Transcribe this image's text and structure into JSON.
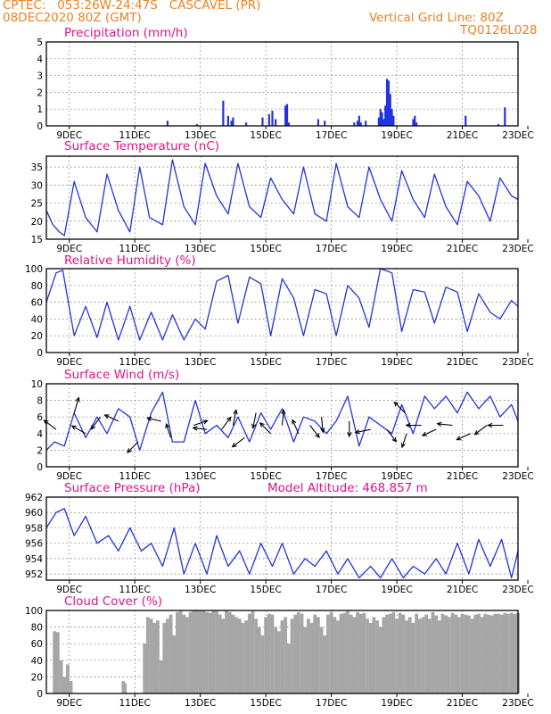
{
  "header": {
    "line1_left": "CPTEC:   053:26W-24:47S   CASCAVEL (PR)",
    "line2_left": "08DEC2020 80Z (GMT)",
    "line2_right": "Vertical Grid Line: 80Z",
    "line3_right": "TQ0126L028"
  },
  "model_altitude": "Model Altitude: 468.857 m",
  "colors": {
    "header": "#f08020",
    "title": "#e0138a",
    "line": "#2233dd",
    "bar": "#2233dd",
    "cloud": "#a6a6a6"
  },
  "chart_data": [
    {
      "type": "bar",
      "title": "Precipitation (mm/h)",
      "ylim": [
        0,
        5
      ],
      "yticks": [
        "0",
        "1",
        "2",
        "3",
        "4",
        "5"
      ],
      "xtick_labels": [
        "9DEC",
        "11DEC",
        "13DEC",
        "15DEC",
        "17DEC",
        "19DEC",
        "21DEC",
        "23DEC"
      ],
      "x": [
        3.7,
        4.6,
        5.4,
        5.55,
        5.65,
        5.7,
        6.1,
        6.6,
        6.8,
        6.9,
        7.0,
        7.3,
        7.35,
        7.4,
        8.3,
        8.5,
        9.4,
        9.5,
        9.55,
        9.6,
        9.75,
        10.15,
        10.2,
        10.25,
        10.3,
        10.35,
        10.4,
        10.45,
        10.5,
        10.55,
        10.6,
        11.2,
        11.25,
        11.3,
        12.8,
        13.8,
        14.0
      ],
      "values": [
        0.3,
        0.1,
        1.5,
        0.6,
        0.3,
        0.5,
        0.2,
        0.5,
        0.7,
        0.9,
        0.4,
        1.2,
        1.3,
        0.2,
        0.4,
        0.3,
        0.2,
        0.3,
        0.6,
        0.2,
        0.3,
        0.5,
        1.0,
        0.8,
        0.4,
        1.2,
        2.8,
        2.7,
        1.9,
        1.0,
        0.6,
        0.4,
        0.6,
        0.2,
        0.6,
        0.1,
        1.1
      ]
    },
    {
      "type": "line",
      "title": "Surface Temperature (nC)",
      "ylim": [
        15,
        38
      ],
      "yticks": [
        "15",
        "20",
        "25",
        "30",
        "35"
      ],
      "xtick_labels": [
        "9DEC",
        "11DEC",
        "13DEC",
        "15DEC",
        "17DEC",
        "19DEC",
        "21DEC",
        "23DEC"
      ],
      "x": [
        0,
        0.2,
        0.4,
        0.55,
        0.85,
        1.2,
        1.55,
        1.85,
        2.2,
        2.55,
        2.85,
        3.15,
        3.55,
        3.85,
        4.2,
        4.55,
        4.85,
        5.2,
        5.55,
        5.85,
        6.2,
        6.55,
        6.85,
        7.2,
        7.55,
        7.85,
        8.2,
        8.55,
        8.85,
        9.2,
        9.55,
        9.85,
        10.2,
        10.55,
        10.85,
        11.2,
        11.55,
        11.85,
        12.2,
        12.55,
        12.85,
        13.2,
        13.55,
        13.85,
        14.2,
        14.4
      ],
      "values": [
        23,
        19,
        17,
        16,
        31,
        21,
        17,
        33,
        23,
        17,
        35,
        21,
        19,
        37,
        24,
        19,
        36,
        27,
        22,
        36,
        24,
        21,
        32,
        26,
        22,
        35,
        22,
        20,
        36,
        24,
        21,
        35,
        26,
        20,
        34,
        26,
        21,
        33,
        24,
        19,
        31,
        27,
        20,
        32,
        27,
        26
      ]
    },
    {
      "type": "line",
      "title": "Relative Humidity (%)",
      "ylim": [
        0,
        100
      ],
      "yticks": [
        "0",
        "20",
        "40",
        "60",
        "80",
        "100"
      ],
      "xtick_labels": [
        "9DEC",
        "11DEC",
        "13DEC",
        "15DEC",
        "17DEC",
        "19DEC",
        "21DEC",
        "23DEC"
      ],
      "x": [
        0,
        0.3,
        0.5,
        0.85,
        1.2,
        1.55,
        1.85,
        2.2,
        2.55,
        2.85,
        3.2,
        3.55,
        3.85,
        4.2,
        4.55,
        4.85,
        5.2,
        5.55,
        5.85,
        6.2,
        6.55,
        6.85,
        7.2,
        7.55,
        7.85,
        8.2,
        8.55,
        8.85,
        9.2,
        9.55,
        9.85,
        10.2,
        10.55,
        10.85,
        11.2,
        11.55,
        11.85,
        12.2,
        12.55,
        12.85,
        13.2,
        13.55,
        13.85,
        14.2,
        14.4
      ],
      "values": [
        60,
        95,
        98,
        20,
        55,
        18,
        60,
        15,
        55,
        15,
        48,
        15,
        45,
        15,
        40,
        28,
        85,
        92,
        35,
        90,
        82,
        20,
        88,
        65,
        20,
        75,
        70,
        20,
        80,
        65,
        30,
        100,
        95,
        25,
        75,
        72,
        35,
        78,
        72,
        25,
        70,
        48,
        40,
        62,
        55
      ]
    },
    {
      "type": "line",
      "title": "Surface Wind (m/s)",
      "ylim": [
        0,
        10
      ],
      "yticks": [
        "0",
        "2",
        "4",
        "6",
        "8",
        "10"
      ],
      "xtick_labels": [
        "9DEC",
        "11DEC",
        "13DEC",
        "15DEC",
        "17DEC",
        "19DEC",
        "21DEC",
        "23DEC"
      ],
      "x": [
        0,
        0.25,
        0.55,
        0.85,
        1.2,
        1.55,
        1.85,
        2.2,
        2.55,
        2.85,
        3.2,
        3.55,
        3.85,
        4.2,
        4.55,
        4.85,
        5.2,
        5.55,
        5.85,
        6.2,
        6.55,
        6.85,
        7.2,
        7.55,
        7.85,
        8.2,
        8.55,
        8.85,
        9.2,
        9.55,
        9.85,
        10.2,
        10.55,
        10.85,
        11.2,
        11.55,
        11.85,
        12.2,
        12.55,
        12.85,
        13.2,
        13.55,
        13.85,
        14.2,
        14.4
      ],
      "values": [
        2,
        3,
        2.5,
        6.5,
        3.5,
        6,
        4,
        7,
        6,
        2,
        6.5,
        9,
        3,
        3,
        8,
        4,
        5,
        3.5,
        6,
        3,
        6.5,
        4.5,
        7,
        3,
        6,
        5.5,
        4,
        5.5,
        8.5,
        2.5,
        6,
        5,
        4,
        7.5,
        4,
        8.5,
        7,
        8.5,
        6.5,
        9,
        7,
        8.5,
        6,
        7.5,
        5.5
      ],
      "wind_arrows": [
        {
          "x": 0.3,
          "y": 4.5,
          "u": -0.8,
          "v": 0.6
        },
        {
          "x": 0.85,
          "y": 6.5,
          "u": 0.3,
          "v": 1.0
        },
        {
          "x": 1.2,
          "y": 4.0,
          "u": -0.9,
          "v": 0.5
        },
        {
          "x": 1.65,
          "y": 6.0,
          "u": -0.6,
          "v": -0.8
        },
        {
          "x": 2.2,
          "y": 5.5,
          "u": -0.9,
          "v": 0.4
        },
        {
          "x": 2.8,
          "y": 3.0,
          "u": -0.7,
          "v": -0.7
        },
        {
          "x": 3.5,
          "y": 5.5,
          "u": -0.9,
          "v": 0.2
        },
        {
          "x": 3.8,
          "y": 3.5,
          "u": -0.3,
          "v": 0.9
        },
        {
          "x": 4.5,
          "y": 5.0,
          "u": 0.9,
          "v": 0.3
        },
        {
          "x": 4.9,
          "y": 4.5,
          "u": -0.9,
          "v": 0.1
        },
        {
          "x": 5.35,
          "y": 4.5,
          "u": 0.6,
          "v": 0.8
        },
        {
          "x": 5.7,
          "y": 5.0,
          "u": 0.2,
          "v": 1.0
        },
        {
          "x": 6.05,
          "y": 3.5,
          "u": -0.8,
          "v": -0.6
        },
        {
          "x": 6.4,
          "y": 6.5,
          "u": -0.2,
          "v": -1.0
        },
        {
          "x": 6.85,
          "y": 4.0,
          "u": -0.7,
          "v": 0.7
        },
        {
          "x": 7.2,
          "y": 5.0,
          "u": 0.1,
          "v": 1.0
        },
        {
          "x": 7.7,
          "y": 4.0,
          "u": -0.4,
          "v": 0.9
        },
        {
          "x": 8.05,
          "y": 5.0,
          "u": 0.6,
          "v": -0.8
        },
        {
          "x": 8.4,
          "y": 6.0,
          "u": 0.1,
          "v": -1.0
        },
        {
          "x": 9.25,
          "y": 5.5,
          "u": 0.0,
          "v": -1.0
        },
        {
          "x": 9.9,
          "y": 4.5,
          "u": -1.0,
          "v": -0.2
        },
        {
          "x": 10.4,
          "y": 4.5,
          "u": 0.6,
          "v": -0.8
        },
        {
          "x": 10.95,
          "y": 6.5,
          "u": -0.7,
          "v": 0.7
        },
        {
          "x": 11.0,
          "y": 4.0,
          "u": -0.3,
          "v": -0.9
        },
        {
          "x": 11.45,
          "y": 5.0,
          "u": -1.0,
          "v": 0.0
        },
        {
          "x": 11.9,
          "y": 4.5,
          "u": -0.9,
          "v": -0.4
        },
        {
          "x": 12.4,
          "y": 5.0,
          "u": -1.0,
          "v": 0.1
        },
        {
          "x": 12.95,
          "y": 4.0,
          "u": -0.9,
          "v": -0.4
        },
        {
          "x": 13.45,
          "y": 5.0,
          "u": -0.8,
          "v": -0.6
        },
        {
          "x": 13.95,
          "y": 5.0,
          "u": -1.0,
          "v": 0.0
        }
      ]
    },
    {
      "type": "line",
      "title": "Surface Pressure (hPa)",
      "ylim": [
        951.2,
        962
      ],
      "yticks": [
        "952",
        "954",
        "956",
        "958",
        "960",
        "962"
      ],
      "xtick_labels": [
        "9DEC",
        "11DEC",
        "13DEC",
        "15DEC",
        "17DEC",
        "19DEC",
        "21DEC",
        "23DEC"
      ],
      "x": [
        0,
        0.3,
        0.55,
        0.85,
        1.2,
        1.55,
        1.9,
        2.2,
        2.55,
        2.9,
        3.2,
        3.55,
        3.9,
        4.2,
        4.55,
        4.9,
        5.2,
        5.55,
        5.9,
        6.2,
        6.55,
        6.9,
        7.2,
        7.55,
        7.9,
        8.2,
        8.55,
        8.9,
        9.2,
        9.55,
        9.9,
        10.2,
        10.55,
        10.9,
        11.2,
        11.55,
        11.9,
        12.2,
        12.55,
        12.9,
        13.2,
        13.55,
        13.9,
        14.2,
        14.4
      ],
      "values": [
        958,
        960,
        960.5,
        957,
        959.5,
        956,
        957,
        955,
        958,
        955,
        956,
        953,
        958,
        952,
        956,
        952,
        957,
        953,
        955,
        952,
        956,
        953,
        956,
        952,
        954,
        953,
        955,
        952,
        954,
        951.5,
        953,
        951.5,
        954,
        951.5,
        953,
        952,
        954,
        952,
        956,
        952,
        956.5,
        953,
        956.5,
        951.5,
        955
      ]
    },
    {
      "type": "bar",
      "title": "Cloud Cover (%)",
      "ylim": [
        0,
        100
      ],
      "yticks": [
        "0",
        "20",
        "40",
        "60",
        "80",
        "100"
      ],
      "xtick_labels": [
        "9DEC",
        "11DEC",
        "13DEC",
        "15DEC",
        "17DEC",
        "19DEC",
        "21DEC",
        "23DEC"
      ],
      "x": [
        0.25,
        0.35,
        0.45,
        0.55,
        0.65,
        0.75,
        2.35,
        2.4,
        3.0,
        3.1,
        3.2,
        3.3,
        3.4,
        3.5,
        3.6,
        3.7,
        3.8,
        3.9,
        4.0,
        4.1,
        4.2,
        4.3,
        4.4,
        4.5,
        4.6,
        4.7,
        4.8,
        4.9,
        5.0,
        5.1,
        5.2,
        5.3,
        5.4,
        5.5,
        5.6,
        5.7,
        5.8,
        5.9,
        6.0,
        6.1,
        6.2,
        6.3,
        6.4,
        6.5,
        6.6,
        6.7,
        6.8,
        6.9,
        7.0,
        7.1,
        7.2,
        7.3,
        7.4,
        7.5,
        7.6,
        7.7,
        7.8,
        7.9,
        8.0,
        8.1,
        8.2,
        8.3,
        8.4,
        8.5,
        8.6,
        8.7,
        8.8,
        8.9,
        9.0,
        9.1,
        9.2,
        9.3,
        9.4,
        9.5,
        9.6,
        9.7,
        9.8,
        9.9,
        10.0,
        10.1,
        10.2,
        10.3,
        10.4,
        10.5,
        10.6,
        10.7,
        10.8,
        10.9,
        11.0,
        11.1,
        11.2,
        11.3,
        11.4,
        11.5,
        11.6,
        11.7,
        11.8,
        11.9,
        12.0,
        12.1,
        12.2,
        12.3,
        12.4,
        12.5,
        12.6,
        12.7,
        12.8,
        12.9,
        13.0,
        13.1,
        13.2,
        13.3,
        13.4,
        13.5,
        13.6,
        13.7,
        13.8,
        13.9,
        14.0,
        14.1,
        14.2,
        14.3,
        14.4
      ],
      "values": [
        75,
        74,
        40,
        20,
        35,
        15,
        15,
        12,
        60,
        92,
        90,
        85,
        88,
        40,
        85,
        90,
        95,
        70,
        98,
        99,
        95,
        92,
        98,
        100,
        100,
        99,
        100,
        98,
        97,
        100,
        99,
        95,
        90,
        100,
        98,
        95,
        92,
        90,
        85,
        88,
        96,
        99,
        90,
        80,
        70,
        92,
        96,
        95,
        80,
        75,
        88,
        92,
        60,
        90,
        95,
        98,
        96,
        80,
        90,
        85,
        95,
        92,
        80,
        70,
        95,
        98,
        92,
        88,
        96,
        97,
        99,
        95,
        92,
        98,
        96,
        97,
        90,
        85,
        92,
        88,
        80,
        92,
        95,
        96,
        98,
        90,
        97,
        95,
        88,
        92,
        85,
        96,
        90,
        92,
        95,
        90,
        98,
        94,
        88,
        96,
        94,
        92,
        97,
        95,
        92,
        96,
        95,
        94,
        90,
        95,
        96,
        92,
        96,
        95,
        94,
        96,
        96,
        95,
        97,
        96,
        97,
        96,
        97
      ]
    }
  ]
}
